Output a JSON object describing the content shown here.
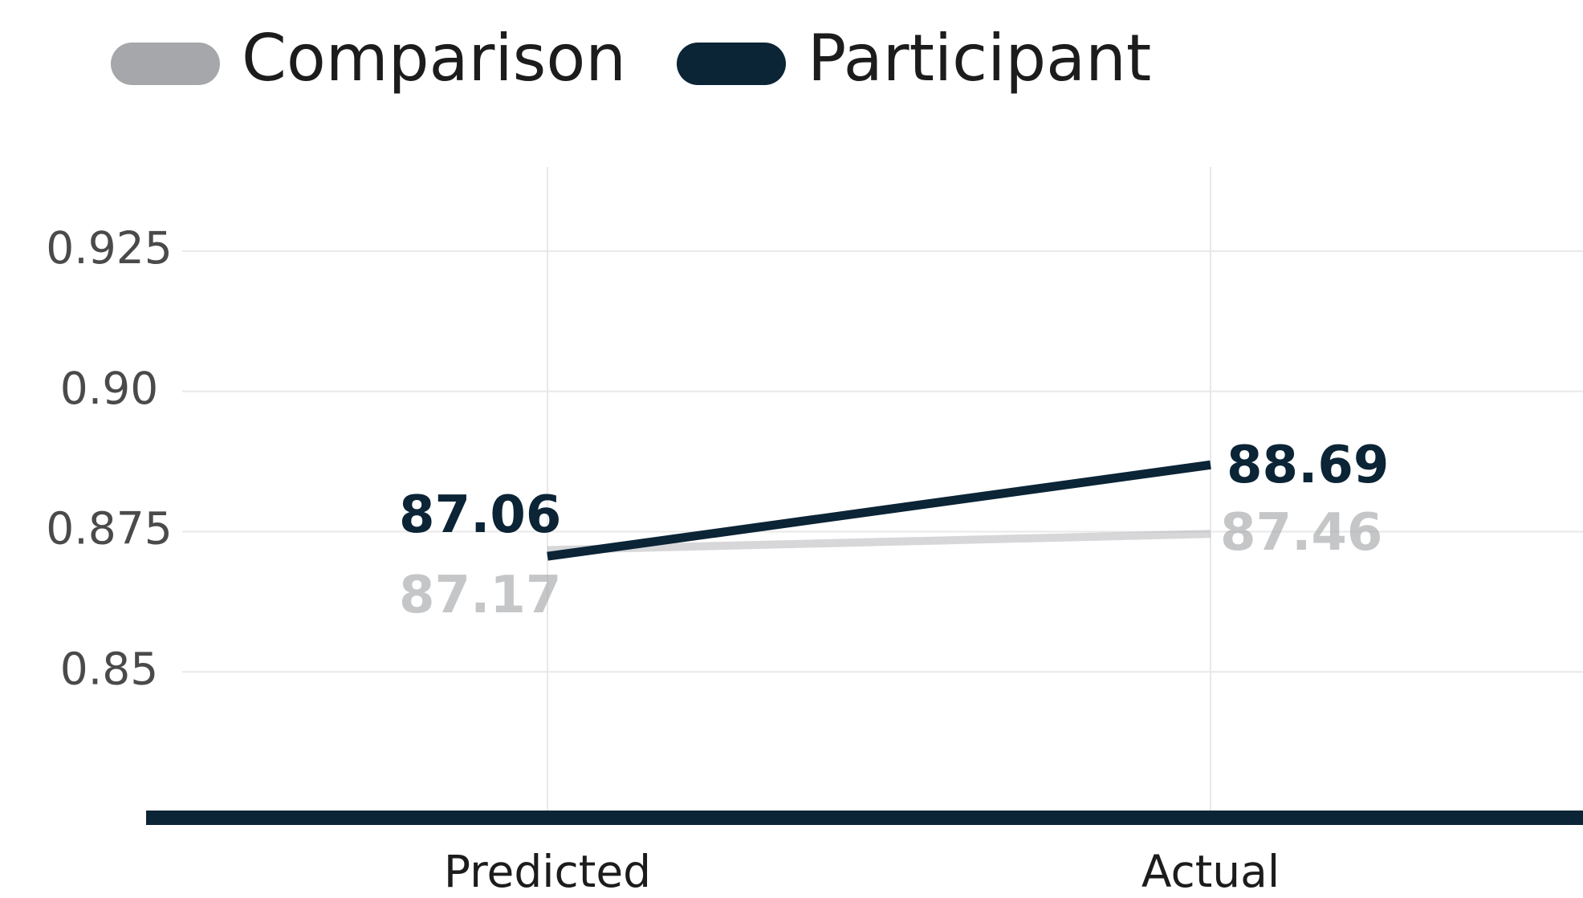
{
  "chart_data": {
    "type": "line",
    "categories": [
      "Predicted",
      "Actual"
    ],
    "series": [
      {
        "name": "Comparison",
        "color": "#a6a7aa",
        "values": [
          0.8717,
          0.8746
        ],
        "value_labels": [
          "87.17",
          "87.46"
        ]
      },
      {
        "name": "Participant",
        "color": "#0b2436",
        "values": [
          0.8706,
          0.8869
        ],
        "value_labels": [
          "87.06",
          "88.69"
        ]
      }
    ],
    "ylim": [
      0.824,
      0.94
    ],
    "yticks": [
      {
        "value": 0.85,
        "label": "0.85"
      },
      0.875,
      {
        "value": 0.9,
        "label": "0.90"
      },
      0.925
    ],
    "grid": true,
    "legend": "top-left"
  }
}
